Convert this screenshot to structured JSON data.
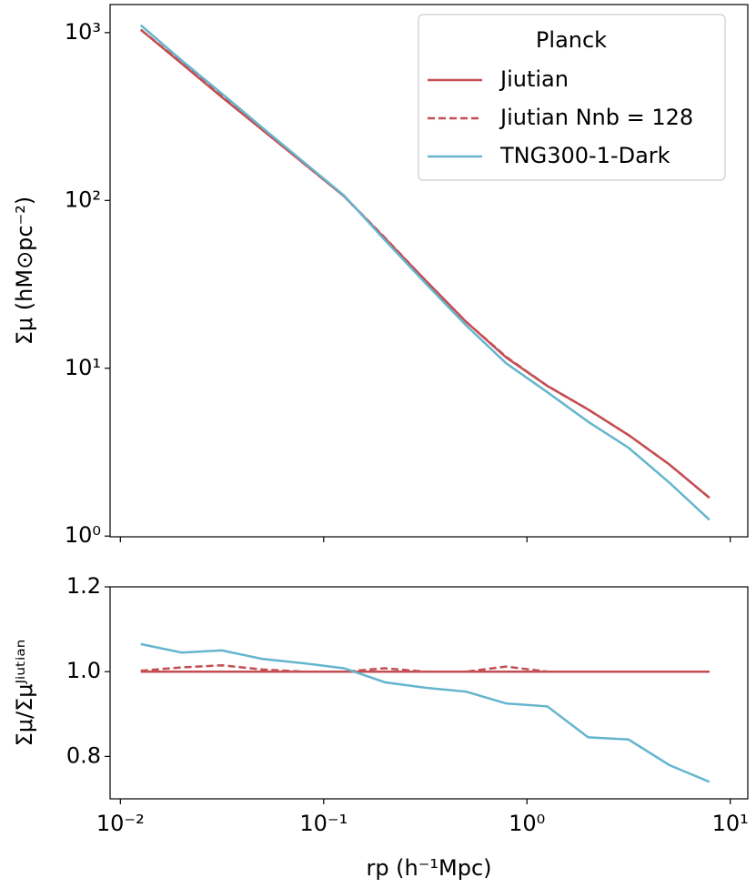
{
  "chart_data": [
    {
      "type": "line",
      "ylabel": "Σμ (hM⊙pc⁻²)",
      "xscale": "log",
      "yscale": "log",
      "xlim": [
        0.0089,
        12.2
      ],
      "ylim": [
        0.99,
        1470
      ],
      "yticks": [
        {
          "value": 1,
          "label": "10⁰"
        },
        {
          "value": 10,
          "label": "10¹"
        },
        {
          "value": 100,
          "label": "10²"
        },
        {
          "value": 1000,
          "label": "10³"
        }
      ],
      "x": [
        0.0126,
        0.02,
        0.0316,
        0.05,
        0.079,
        0.126,
        0.2,
        0.316,
        0.5,
        0.79,
        1.26,
        2,
        3.16,
        5,
        7.9
      ],
      "legend_title": "Planck",
      "legend": "upper right",
      "series": [
        {
          "name": "Jiutian",
          "color": "#c44e52",
          "dash": false,
          "values": [
            1040,
            655,
            412,
            263,
            168,
            106,
            59.5,
            33.5,
            19,
            11.6,
            7.85,
            5.68,
            4.0,
            2.68,
            1.69
          ]
        },
        {
          "name": "Jiutian Nnb = 128",
          "color": "#c44e52",
          "dash": true,
          "values": [
            1042,
            662,
            418,
            264,
            168,
            106,
            60,
            33.5,
            19,
            11.7,
            7.85,
            5.68,
            4.0,
            2.68,
            1.69
          ]
        },
        {
          "name": "TNG300-1-Dark",
          "color": "#64b5cd",
          "dash": false,
          "values": [
            1107,
            684,
            433,
            271,
            171,
            107,
            58,
            32.2,
            18.1,
            10.7,
            7.2,
            4.8,
            3.36,
            2.09,
            1.25
          ]
        }
      ]
    },
    {
      "type": "line",
      "ylabel": "Σμ/Σμᴶⁱᵘᵗⁱᵃⁿ",
      "xlabel": "rp (h⁻¹Mpc)",
      "xscale": "log",
      "xlim": [
        0.0089,
        12.2
      ],
      "ylim": [
        0.7,
        1.2
      ],
      "xticks": [
        {
          "value": 0.01,
          "label": "10⁻²"
        },
        {
          "value": 0.1,
          "label": "10⁻¹"
        },
        {
          "value": 1,
          "label": "10⁰"
        },
        {
          "value": 10,
          "label": "10¹"
        }
      ],
      "yticks": [
        0.8,
        {
          "value": 1,
          "label": "1.0"
        },
        1.2
      ],
      "x": [
        0.0126,
        0.02,
        0.0316,
        0.05,
        0.079,
        0.126,
        0.2,
        0.316,
        0.5,
        0.79,
        1.26,
        2,
        3.16,
        5,
        7.9
      ],
      "series": [
        {
          "color": "#c44e52",
          "dash": false,
          "values": [
            1,
            1,
            1,
            1,
            1,
            1,
            1,
            1,
            1,
            1,
            1,
            1,
            1,
            1,
            1
          ]
        },
        {
          "color": "#c44e52",
          "dash": true,
          "values": [
            1.002,
            1.01,
            1.015,
            1.005,
            1.0,
            1.0,
            1.008,
            1.0,
            1.0,
            1.012,
            1.0,
            1.0,
            1.0,
            1.0,
            1.0
          ]
        },
        {
          "color": "#64b5cd",
          "dash": false,
          "values": [
            1.065,
            1.045,
            1.05,
            1.03,
            1.02,
            1.008,
            0.975,
            0.962,
            0.953,
            0.925,
            0.918,
            0.845,
            0.84,
            0.78,
            0.74
          ]
        }
      ]
    }
  ]
}
